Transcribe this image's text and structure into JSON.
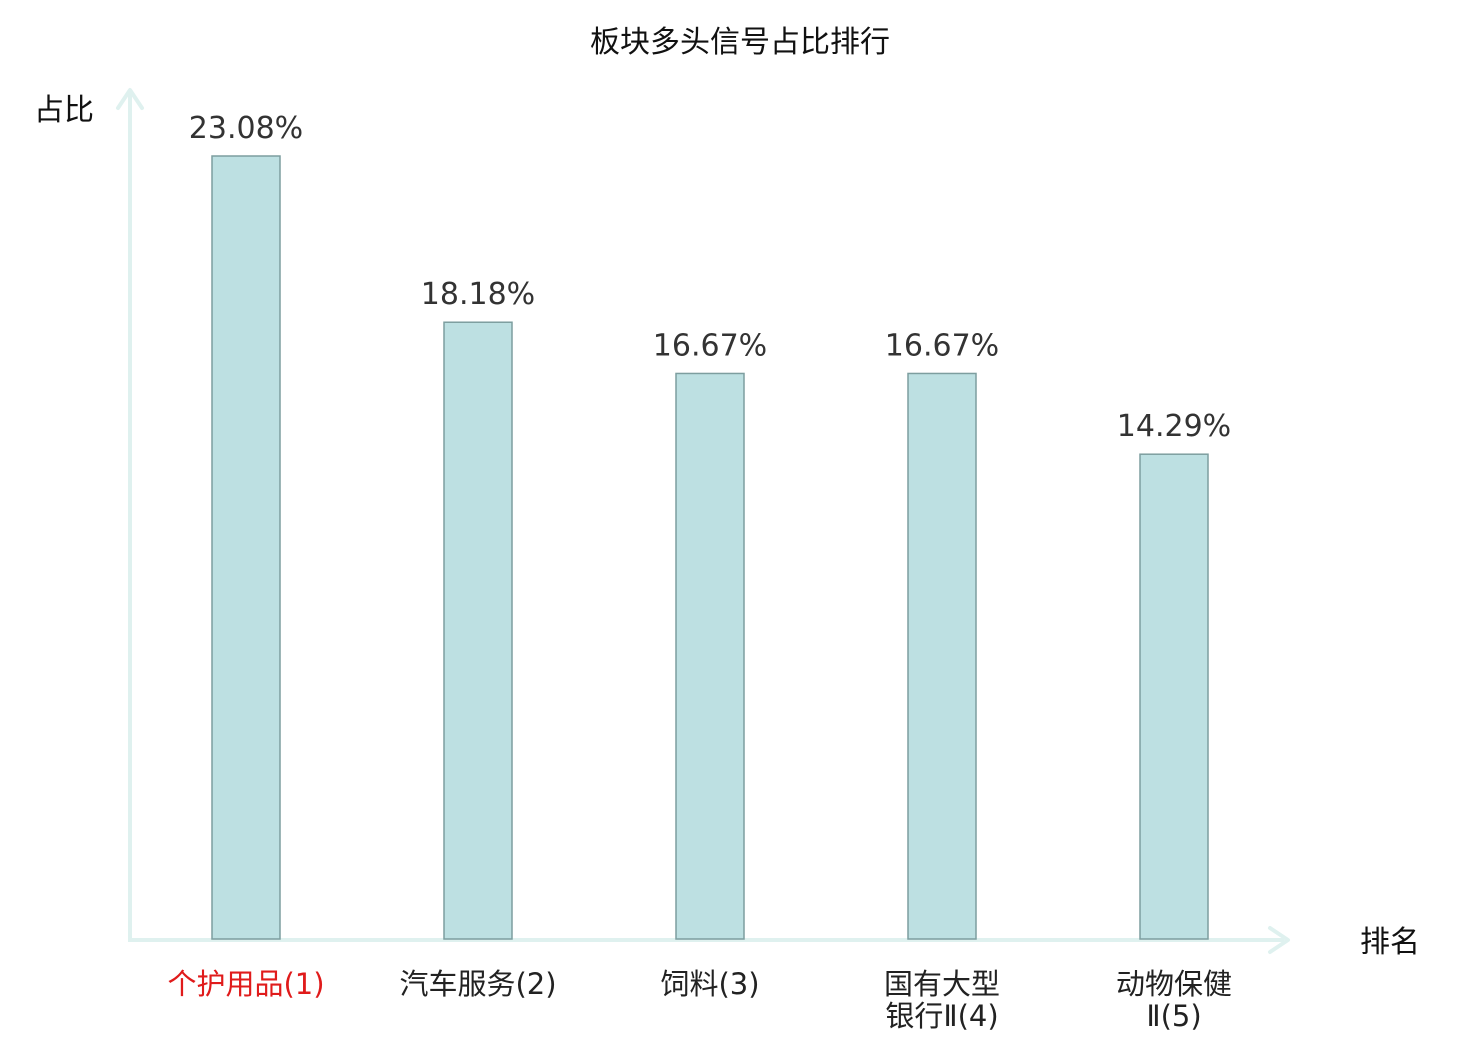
{
  "chart_data": {
    "type": "bar",
    "title": "板块多头信号占比排行",
    "xlabel": "排名",
    "ylabel": "占比",
    "categories": [
      [
        "个护用品(1)"
      ],
      [
        "汽车服务(2)"
      ],
      [
        "饲料(3)"
      ],
      [
        "国有大型",
        "银行Ⅱ(4)"
      ],
      [
        "动物保健",
        "Ⅱ(5)"
      ]
    ],
    "values": [
      23.08,
      18.18,
      16.67,
      16.67,
      14.29
    ],
    "value_labels": [
      "23.08%",
      "18.18%",
      "16.67%",
      "16.67%",
      "14.29%"
    ],
    "highlight_index": 0,
    "grid": false,
    "colors": {
      "bar_fill": "#bde0e2",
      "bar_stroke": "#7d9e9f",
      "axis": "#dff1ef",
      "highlight_label": "#e01b1b",
      "normal_label": "#222222"
    }
  }
}
